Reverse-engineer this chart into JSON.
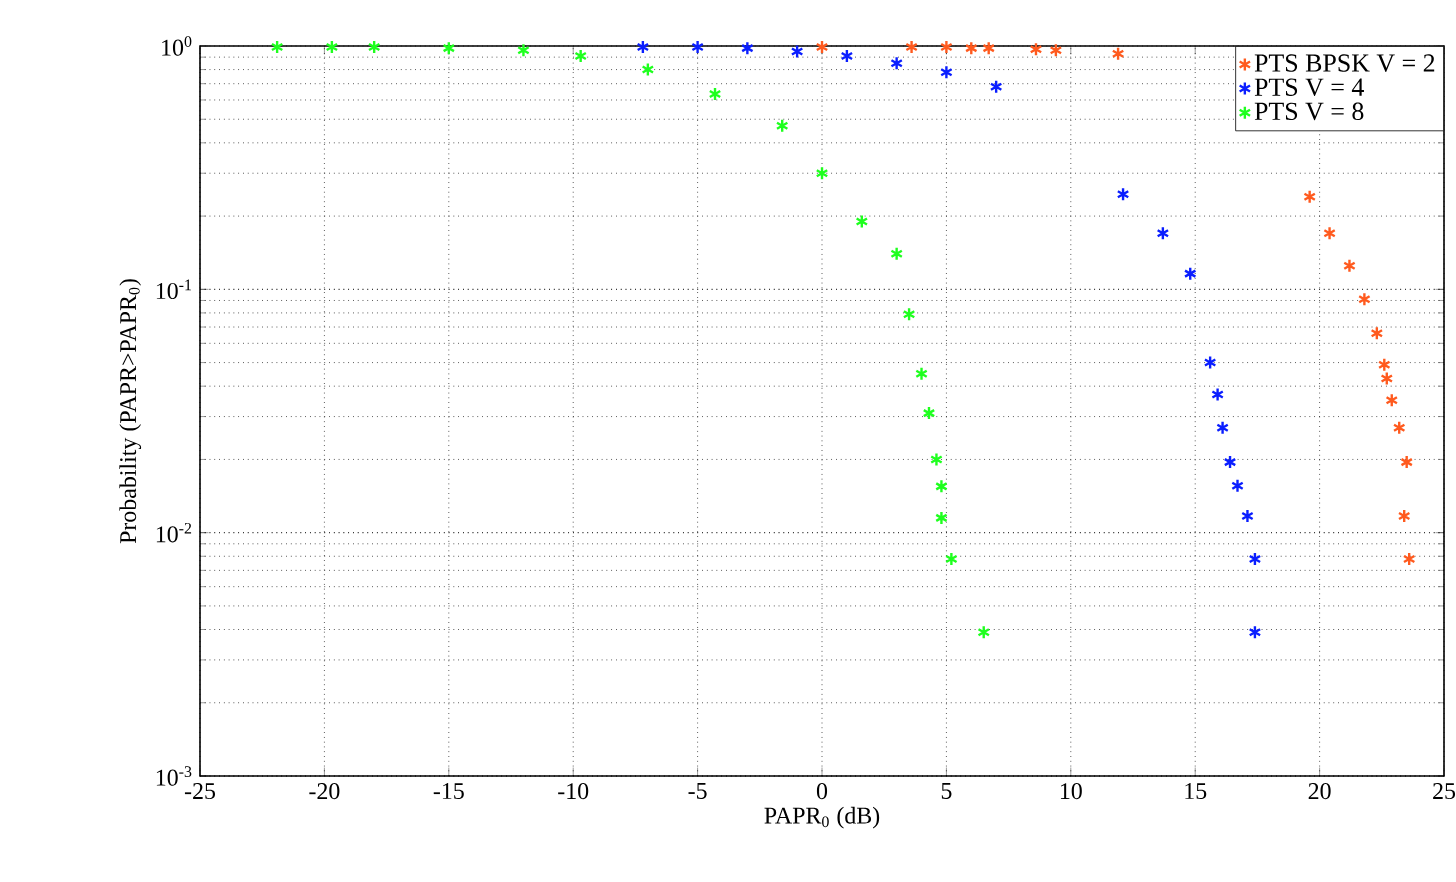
{
  "chart_data": {
    "type": "scatter",
    "xlabel": "PAPR$_{0}$ (dB)",
    "ylabel": "Probability (PAPR>PAPR$_{0}$)",
    "xlim": [
      -25,
      25
    ],
    "ylim": [
      0.001,
      1
    ],
    "log": "y",
    "xticks": [
      -25,
      -20,
      -15,
      -10,
      -5,
      0,
      5,
      10,
      15,
      20,
      25
    ],
    "yticks": [
      {
        "value": 0.001,
        "label": "10$^{-3}$"
      },
      {
        "value": 0.01,
        "label": "10$^{-2}$"
      },
      {
        "value": 0.1,
        "label": "10$^{-1}$"
      },
      {
        "value": 1,
        "label": "10$^{0}$"
      }
    ],
    "grid": true,
    "legend": "top right",
    "marker": "cross",
    "series": [
      {
        "name": "PTS BPSK V = 2",
        "color": "#ff5a1e",
        "x": [
          0,
          3.6,
          5,
          6,
          6.7,
          8.6,
          9.4,
          11.9,
          19.6,
          20.4,
          21.2,
          21.8,
          22.3,
          22.6,
          22.7,
          22.9,
          23.2,
          23.5,
          23.4,
          23.6
        ],
        "values": [
          0.99,
          0.99,
          0.99,
          0.98,
          0.98,
          0.97,
          0.96,
          0.93,
          0.24,
          0.17,
          0.125,
          0.091,
          0.066,
          0.049,
          0.043,
          0.035,
          0.027,
          0.0195,
          0.0117,
          0.0078
        ]
      },
      {
        "name": "PTS V = 4",
        "color": "#0a1eff",
        "x": [
          -7.2,
          -5,
          -3,
          -1,
          1,
          3,
          5,
          7,
          12.1,
          13.7,
          14.8,
          15.6,
          15.9,
          16.1,
          16.4,
          16.7,
          17.1,
          17.4,
          17.4
        ],
        "values": [
          0.99,
          0.99,
          0.98,
          0.95,
          0.91,
          0.85,
          0.78,
          0.68,
          0.246,
          0.17,
          0.116,
          0.05,
          0.037,
          0.027,
          0.0195,
          0.0156,
          0.0117,
          0.0078,
          0.0039
        ]
      },
      {
        "name": "PTS V = 8",
        "color": "#1eff1e",
        "x": [
          -21.9,
          -19.7,
          -18,
          -15,
          -12,
          -9.7,
          -7,
          -4.3,
          -1.6,
          0,
          1.6,
          3,
          3.5,
          4,
          4.3,
          4.6,
          4.8,
          4.8,
          5.2,
          6.5
        ],
        "values": [
          0.99,
          0.99,
          0.99,
          0.98,
          0.96,
          0.91,
          0.8,
          0.635,
          0.47,
          0.3,
          0.19,
          0.14,
          0.079,
          0.045,
          0.031,
          0.02,
          0.0155,
          0.0115,
          0.0078,
          0.0039
        ]
      }
    ]
  }
}
